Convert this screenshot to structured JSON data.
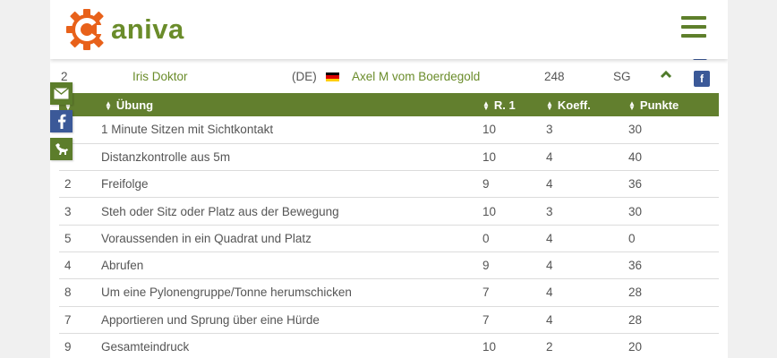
{
  "brand": {
    "logo_text": "aniva",
    "logo_color": "#6a8c2a",
    "accent_orange": "#e8611a",
    "menu_icon": "hamburger-icon"
  },
  "share": {
    "items": [
      {
        "icon": "envelope-icon",
        "label": "email"
      },
      {
        "icon": "facebook-icon",
        "label": "facebook"
      },
      {
        "icon": "dog-icon",
        "label": "dog"
      }
    ]
  },
  "result_row": {
    "rank": "2",
    "handler": "Iris Doktor",
    "country": "(DE)",
    "flag": "germany-flag-icon",
    "dog": "Axel M vom Boerdegold",
    "points": "248",
    "grade": "SG",
    "toggle_icon": "chevron-up-icon",
    "fb_icon": "facebook-icon",
    "fb_label": "f"
  },
  "table": {
    "headers": [
      "",
      "Übung",
      "R. 1",
      "Koeff.",
      "Punkte"
    ],
    "header_color": "#627f2e",
    "rows": [
      {
        "nr": "",
        "exercise": "1 Minute Sitzen mit Sichtkontakt",
        "r1": "10",
        "koeff": "3",
        "punkte": "30"
      },
      {
        "nr": "",
        "exercise": "Distanzkontrolle aus 5m",
        "r1": "10",
        "koeff": "4",
        "punkte": "40"
      },
      {
        "nr": "2",
        "exercise": "Freifolge",
        "r1": "9",
        "koeff": "4",
        "punkte": "36"
      },
      {
        "nr": "3",
        "exercise": "Steh oder Sitz oder Platz aus der Bewegung",
        "r1": "10",
        "koeff": "3",
        "punkte": "30"
      },
      {
        "nr": "5",
        "exercise": "Voraussenden in ein Quadrat und Platz",
        "r1": "0",
        "koeff": "4",
        "punkte": "0"
      },
      {
        "nr": "4",
        "exercise": "Abrufen",
        "r1": "9",
        "koeff": "4",
        "punkte": "36"
      },
      {
        "nr": "8",
        "exercise": "Um eine Pylonengruppe/Tonne herumschicken",
        "r1": "7",
        "koeff": "4",
        "punkte": "28"
      },
      {
        "nr": "7",
        "exercise": "Apportieren und Sprung über eine Hürde",
        "r1": "7",
        "koeff": "4",
        "punkte": "28"
      },
      {
        "nr": "9",
        "exercise": "Gesamteindruck",
        "r1": "10",
        "koeff": "2",
        "punkte": "20"
      }
    ]
  }
}
